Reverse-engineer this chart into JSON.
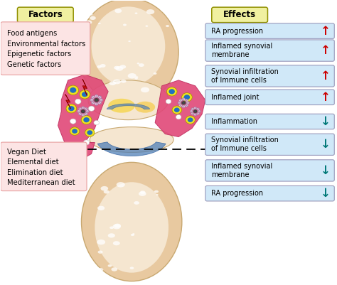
{
  "fig_width": 4.74,
  "fig_height": 4.01,
  "dpi": 100,
  "bg_color": "#ffffff",
  "factors_label": "Factors",
  "effects_label": "Effects",
  "factors_box_color": "#f0f0a0",
  "effects_box_color": "#f0f0a0",
  "top_factors": "Food antigens\nEnvironmental factors\nEpigenetic factors\nGenetic factors",
  "top_factors_bg": "#fce4e4",
  "top_factors_edge": "#e8a0a0",
  "bottom_factors": "Vegan Diet\nElemental diet\nElimination diet\nMediterranean diet",
  "bottom_factors_bg": "#fce4e4",
  "bottom_factors_edge": "#e8a0a0",
  "effect_box_color": "#d0e8f8",
  "effect_box_edge": "#9999bb",
  "joint_outer_color": "#e8c9a0",
  "joint_outer_edge": "#c8a870",
  "joint_inner_color": "#f5e6d0",
  "synovial_color": "#e04878",
  "synovial_edge": "#c03060",
  "up_arrow_color": "#cc0000",
  "down_arrow_color": "#007878",
  "up_effects": [
    "RA progression",
    "Inflamed synovial\nmembrane",
    "Synovial infiltration\nof Immune cells",
    "Inflamed joint"
  ],
  "down_effects": [
    "Inflammation",
    "Synovial infiltration\nof Immune cells",
    "Inflamed synovial\nmembrane",
    "RA progression"
  ]
}
